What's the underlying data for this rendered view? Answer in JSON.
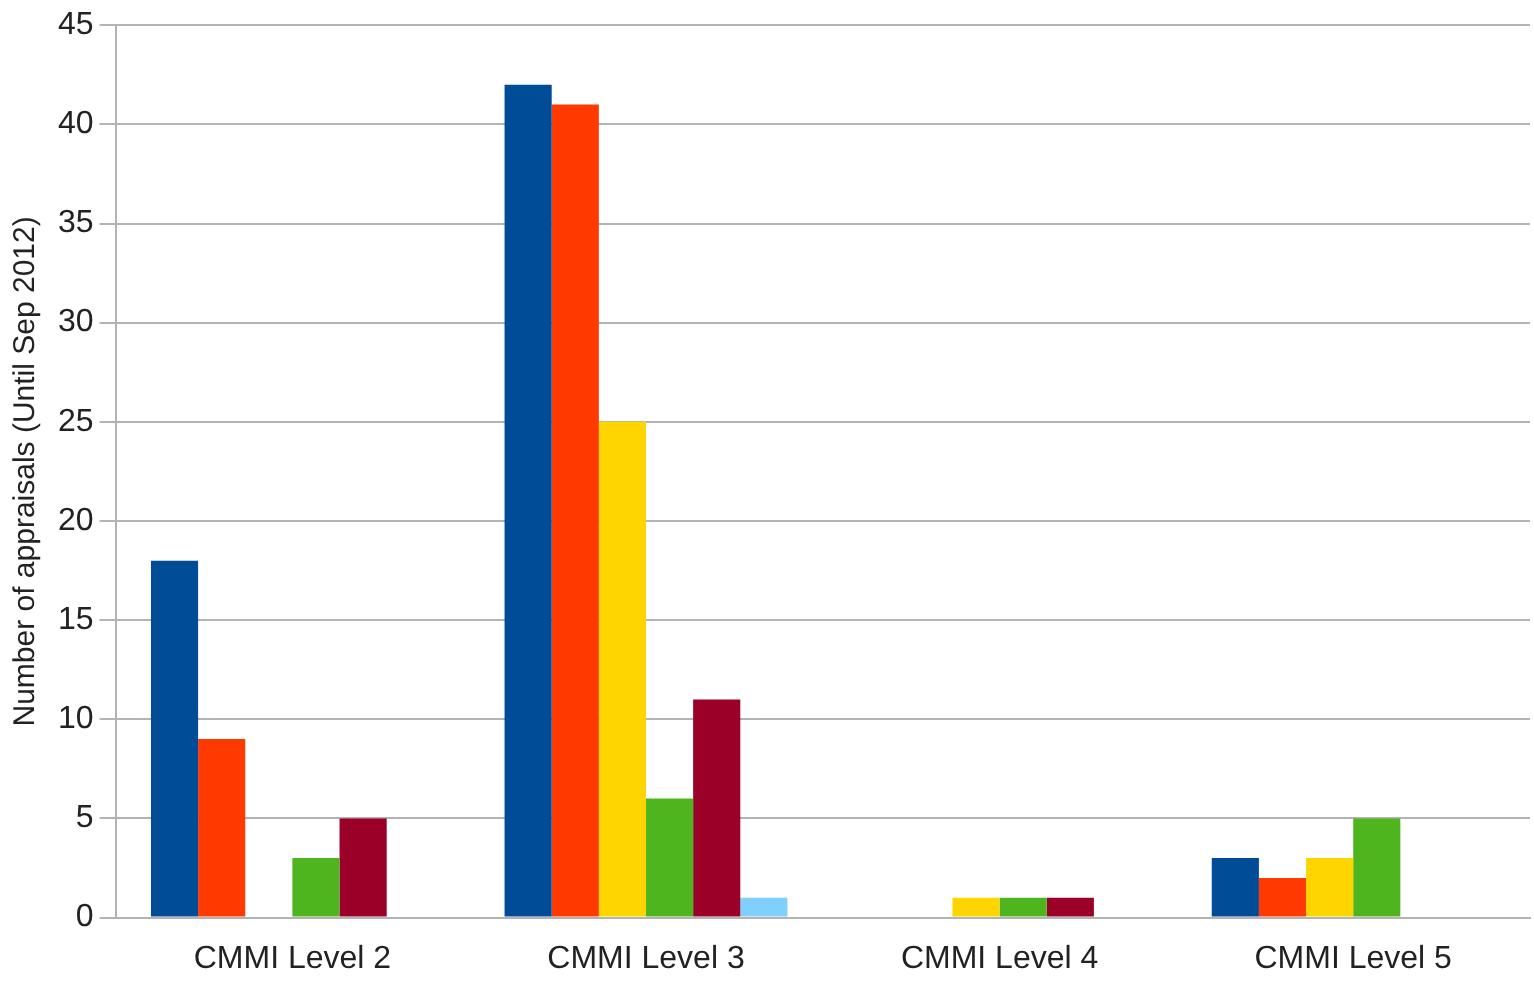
{
  "chart_data": {
    "type": "bar",
    "ylabel": "Number of appraisals (Until Sep 2012)",
    "categories": [
      "CMMI Level 2",
      "CMMI Level 3",
      "CMMI Level 4",
      "CMMI Level 5"
    ],
    "series": [
      {
        "color": "#004c97",
        "values": [
          18,
          42,
          0,
          3
        ]
      },
      {
        "color": "#ff3a00",
        "values": [
          9,
          41,
          0,
          2
        ]
      },
      {
        "color": "#ffd500",
        "values": [
          0,
          25,
          1,
          3
        ]
      },
      {
        "color": "#4fb51e",
        "values": [
          3,
          6,
          1,
          5
        ]
      },
      {
        "color": "#9a0028",
        "values": [
          5,
          11,
          1,
          0
        ]
      },
      {
        "color": "#7fcfff",
        "values": [
          0,
          1,
          0,
          0
        ]
      }
    ],
    "ylim": [
      0,
      45
    ],
    "yticks": [
      0,
      5,
      10,
      15,
      20,
      25,
      30,
      35,
      40,
      45
    ],
    "grid": "y",
    "legend": false
  }
}
